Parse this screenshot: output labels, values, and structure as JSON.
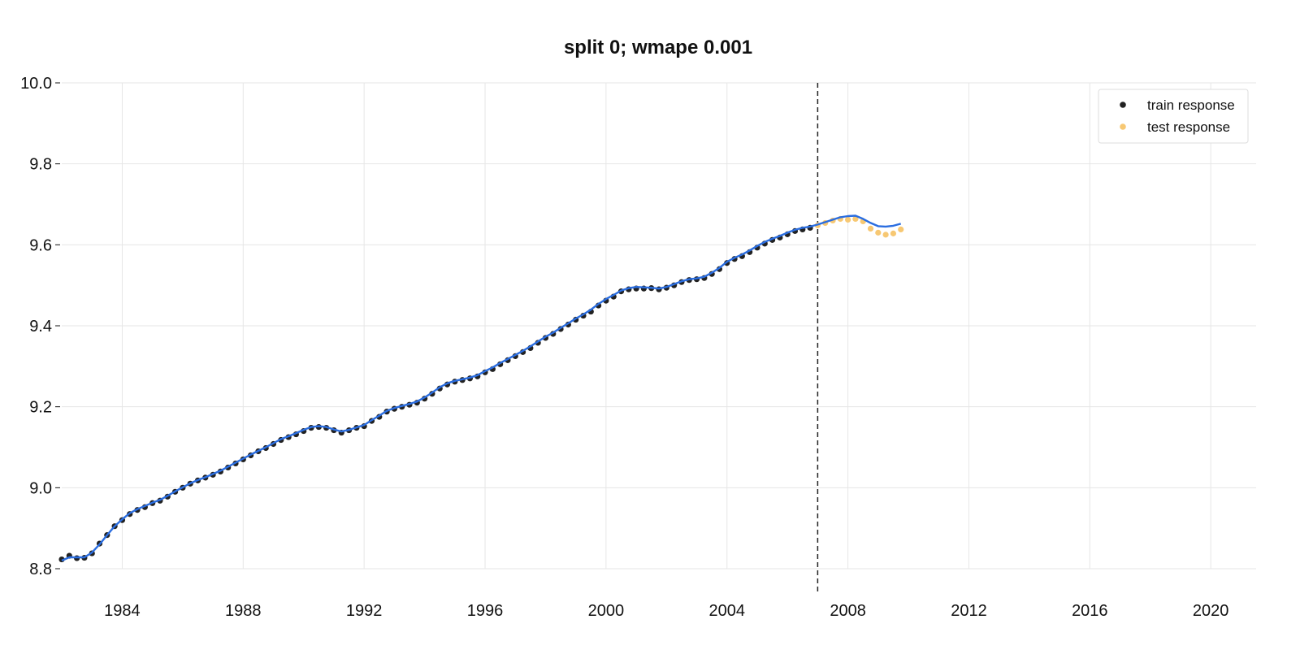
{
  "chart_data": {
    "type": "scatter",
    "title": "split 0; wmape 0.001",
    "xlabel": "",
    "ylabel": "",
    "xlim": [
      1982.0,
      2021.5
    ],
    "ylim": [
      8.8,
      10.0
    ],
    "xticks": [
      1984,
      1988,
      1992,
      1996,
      2000,
      2004,
      2008,
      2012,
      2016,
      2020
    ],
    "yticks": [
      8.8,
      9.0,
      9.2,
      9.4,
      9.6,
      9.8,
      10.0
    ],
    "grid": true,
    "legend_position": "top-right",
    "split_x": 2007.0,
    "colors": {
      "train": "#222222",
      "test": "#f7c873",
      "fit": "#2a6de0",
      "split_line": "#222222",
      "grid": "#e6e6e6"
    },
    "series": [
      {
        "name": "train response",
        "kind": "scatter",
        "x": [
          1982.0,
          1982.25,
          1982.5,
          1982.75,
          1983.0,
          1983.25,
          1983.5,
          1983.75,
          1984.0,
          1984.25,
          1984.5,
          1984.75,
          1985.0,
          1985.25,
          1985.5,
          1985.75,
          1986.0,
          1986.25,
          1986.5,
          1986.75,
          1987.0,
          1987.25,
          1987.5,
          1987.75,
          1988.0,
          1988.25,
          1988.5,
          1988.75,
          1989.0,
          1989.25,
          1989.5,
          1989.75,
          1990.0,
          1990.25,
          1990.5,
          1990.75,
          1991.0,
          1991.25,
          1991.5,
          1991.75,
          1992.0,
          1992.25,
          1992.5,
          1992.75,
          1993.0,
          1993.25,
          1993.5,
          1993.75,
          1994.0,
          1994.25,
          1994.5,
          1994.75,
          1995.0,
          1995.25,
          1995.5,
          1995.75,
          1996.0,
          1996.25,
          1996.5,
          1996.75,
          1997.0,
          1997.25,
          1997.5,
          1997.75,
          1998.0,
          1998.25,
          1998.5,
          1998.75,
          1999.0,
          1999.25,
          1999.5,
          1999.75,
          2000.0,
          2000.25,
          2000.5,
          2000.75,
          2001.0,
          2001.25,
          2001.5,
          2001.75,
          2002.0,
          2002.25,
          2002.5,
          2002.75,
          2003.0,
          2003.25,
          2003.5,
          2003.75,
          2004.0,
          2004.25,
          2004.5,
          2004.75,
          2005.0,
          2005.25,
          2005.5,
          2005.75,
          2006.0,
          2006.25,
          2006.5,
          2006.75
        ],
        "values": [
          8.823,
          8.832,
          8.826,
          8.827,
          8.838,
          8.862,
          8.883,
          8.905,
          8.92,
          8.935,
          8.945,
          8.952,
          8.962,
          8.968,
          8.978,
          8.99,
          9.0,
          9.01,
          9.018,
          9.025,
          9.032,
          9.04,
          9.05,
          9.06,
          9.07,
          9.08,
          9.09,
          9.098,
          9.108,
          9.118,
          9.125,
          9.132,
          9.14,
          9.148,
          9.15,
          9.148,
          9.142,
          9.136,
          9.142,
          9.148,
          9.152,
          9.165,
          9.175,
          9.188,
          9.195,
          9.2,
          9.205,
          9.21,
          9.22,
          9.232,
          9.245,
          9.255,
          9.262,
          9.266,
          9.27,
          9.275,
          9.285,
          9.293,
          9.305,
          9.315,
          9.325,
          9.335,
          9.345,
          9.358,
          9.37,
          9.38,
          9.392,
          9.403,
          9.415,
          9.425,
          9.435,
          9.45,
          9.462,
          9.472,
          9.485,
          9.49,
          9.492,
          9.492,
          9.493,
          9.49,
          9.494,
          9.5,
          9.508,
          9.513,
          9.515,
          9.518,
          9.528,
          9.54,
          9.555,
          9.565,
          9.572,
          9.582,
          9.593,
          9.603,
          9.612,
          9.618,
          9.626,
          9.634,
          9.638,
          9.642
        ]
      },
      {
        "name": "test response",
        "kind": "scatter",
        "x": [
          2007.0,
          2007.25,
          2007.5,
          2007.75,
          2008.0,
          2008.25,
          2008.5,
          2008.75,
          2009.0,
          2009.25,
          2009.5,
          2009.75
        ],
        "values": [
          9.648,
          9.654,
          9.66,
          9.664,
          9.662,
          9.664,
          9.658,
          9.64,
          9.63,
          9.625,
          9.628,
          9.638
        ]
      },
      {
        "kind": "line",
        "x": [
          1982.0,
          1982.25,
          1982.5,
          1982.75,
          1983.0,
          1983.25,
          1983.5,
          1983.75,
          1984.0,
          1984.25,
          1984.5,
          1984.75,
          1985.0,
          1985.25,
          1985.5,
          1985.75,
          1986.0,
          1986.25,
          1986.5,
          1986.75,
          1987.0,
          1987.25,
          1987.5,
          1987.75,
          1988.0,
          1988.25,
          1988.5,
          1988.75,
          1989.0,
          1989.25,
          1989.5,
          1989.75,
          1990.0,
          1990.25,
          1990.5,
          1990.75,
          1991.0,
          1991.25,
          1991.5,
          1991.75,
          1992.0,
          1992.25,
          1992.5,
          1992.75,
          1993.0,
          1993.25,
          1993.5,
          1993.75,
          1994.0,
          1994.25,
          1994.5,
          1994.75,
          1995.0,
          1995.25,
          1995.5,
          1995.75,
          1996.0,
          1996.25,
          1996.5,
          1996.75,
          1997.0,
          1997.25,
          1997.5,
          1997.75,
          1998.0,
          1998.25,
          1998.5,
          1998.75,
          1999.0,
          1999.25,
          1999.5,
          1999.75,
          2000.0,
          2000.25,
          2000.5,
          2000.75,
          2001.0,
          2001.25,
          2001.5,
          2001.75,
          2002.0,
          2002.25,
          2002.5,
          2002.75,
          2003.0,
          2003.25,
          2003.5,
          2003.75,
          2004.0,
          2004.25,
          2004.5,
          2004.75,
          2005.0,
          2005.25,
          2005.5,
          2005.75,
          2006.0,
          2006.25,
          2006.5,
          2006.75,
          2007.0,
          2007.25,
          2007.5,
          2007.75,
          2008.0,
          2008.25,
          2008.5,
          2008.75,
          2009.0,
          2009.25,
          2009.5,
          2009.75
        ],
        "values": [
          8.82,
          8.828,
          8.828,
          8.828,
          8.84,
          8.86,
          8.883,
          8.905,
          8.922,
          8.937,
          8.947,
          8.955,
          8.963,
          8.97,
          8.98,
          8.991,
          9.001,
          9.011,
          9.019,
          9.026,
          9.034,
          9.042,
          9.052,
          9.062,
          9.072,
          9.082,
          9.091,
          9.1,
          9.11,
          9.12,
          9.127,
          9.135,
          9.143,
          9.15,
          9.152,
          9.15,
          9.144,
          9.139,
          9.143,
          9.149,
          9.155,
          9.167,
          9.178,
          9.19,
          9.197,
          9.202,
          9.207,
          9.213,
          9.223,
          9.235,
          9.248,
          9.258,
          9.264,
          9.268,
          9.272,
          9.278,
          9.288,
          9.297,
          9.308,
          9.318,
          9.328,
          9.338,
          9.349,
          9.361,
          9.373,
          9.383,
          9.395,
          9.406,
          9.418,
          9.428,
          9.44,
          9.454,
          9.466,
          9.476,
          9.487,
          9.493,
          9.496,
          9.495,
          9.494,
          9.492,
          9.496,
          9.503,
          9.51,
          9.515,
          9.517,
          9.521,
          9.531,
          9.543,
          9.558,
          9.568,
          9.576,
          9.586,
          9.597,
          9.607,
          9.615,
          9.622,
          9.63,
          9.637,
          9.642,
          9.645,
          9.65,
          9.656,
          9.662,
          9.668,
          9.671,
          9.672,
          9.664,
          9.654,
          9.646,
          9.645,
          9.647,
          9.652
        ]
      }
    ]
  }
}
